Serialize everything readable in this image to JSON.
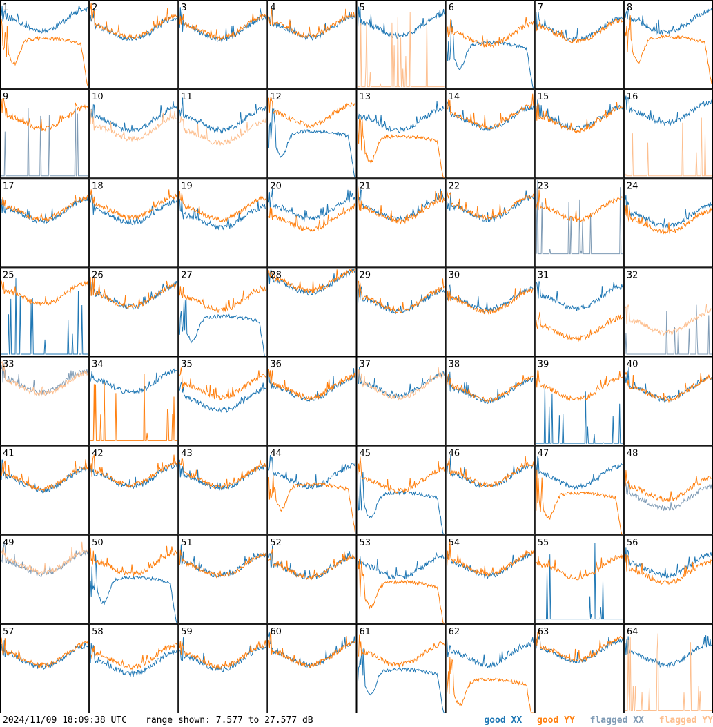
{
  "footer": {
    "timestamp": "2024/11/09 18:09:38 UTC",
    "range_label": "range shown: 7.577 to 27.577 dB"
  },
  "legend": [
    {
      "label": "good XX",
      "color": "#1f77b4"
    },
    {
      "label": "good YY",
      "color": "#ff7f0e"
    },
    {
      "label": "flagged XX",
      "color": "#7f9bb5"
    },
    {
      "label": "flagged YY",
      "color": "#fdbf8f"
    }
  ],
  "chart_data": {
    "type": "line",
    "grid": {
      "rows": 8,
      "cols": 8
    },
    "ylim": [
      7.577,
      27.577
    ],
    "y_unit": "dB",
    "colors": {
      "good_xx": "#1f77b4",
      "good_yy": "#ff7f0e",
      "flagged_xx": "#7f9bb5",
      "flagged_yy": "#fdbf8f"
    },
    "panels": [
      {
        "id": "1",
        "xx": {
          "style": "normal",
          "level": 0.72,
          "flag": false
        },
        "yy": {
          "style": "dip",
          "level": 0.5,
          "flag": false
        }
      },
      {
        "id": "2",
        "xx": {
          "style": "normal",
          "level": 0.62,
          "flag": false
        },
        "yy": {
          "style": "normal",
          "level": 0.64,
          "flag": false
        }
      },
      {
        "id": "3",
        "xx": {
          "style": "normal",
          "level": 0.62,
          "flag": false
        },
        "yy": {
          "style": "normal",
          "level": 0.64,
          "flag": false
        }
      },
      {
        "id": "4",
        "xx": {
          "style": "normal",
          "level": 0.64,
          "flag": false
        },
        "yy": {
          "style": "normal",
          "level": 0.66,
          "flag": false
        }
      },
      {
        "id": "5",
        "xx": {
          "style": "normal",
          "level": 0.66,
          "flag": false
        },
        "yy": {
          "style": "spikes",
          "level": 0.02,
          "flag": true
        }
      },
      {
        "id": "6",
        "xx": {
          "style": "dip",
          "level": 0.45,
          "flag": false
        },
        "yy": {
          "style": "normal",
          "level": 0.55,
          "flag": false
        }
      },
      {
        "id": "7",
        "xx": {
          "style": "normal",
          "level": 0.62,
          "flag": false
        },
        "yy": {
          "style": "normal",
          "level": 0.6,
          "flag": false
        }
      },
      {
        "id": "8",
        "xx": {
          "style": "normal",
          "level": 0.7,
          "flag": false
        },
        "yy": {
          "style": "dip",
          "level": 0.52,
          "flag": false
        }
      },
      {
        "id": "9",
        "xx": {
          "style": "spikes",
          "level": 0.02,
          "flag": true
        },
        "yy": {
          "style": "normal",
          "level": 0.62,
          "flag": false
        }
      },
      {
        "id": "10",
        "xx": {
          "style": "normal",
          "level": 0.6,
          "flag": false
        },
        "yy": {
          "style": "normal",
          "level": 0.5,
          "flag": true
        }
      },
      {
        "id": "11",
        "xx": {
          "style": "normal",
          "level": 0.6,
          "flag": false
        },
        "yy": {
          "style": "normal",
          "level": 0.45,
          "flag": true
        }
      },
      {
        "id": "12",
        "xx": {
          "style": "dip",
          "level": 0.46,
          "flag": false
        },
        "yy": {
          "style": "normal",
          "level": 0.66,
          "flag": false
        }
      },
      {
        "id": "13",
        "xx": {
          "style": "normal",
          "level": 0.6,
          "flag": false
        },
        "yy": {
          "style": "dip",
          "level": 0.4,
          "flag": false
        }
      },
      {
        "id": "14",
        "xx": {
          "style": "normal",
          "level": 0.62,
          "flag": false
        },
        "yy": {
          "style": "normal",
          "level": 0.64,
          "flag": false
        }
      },
      {
        "id": "15",
        "xx": {
          "style": "normal",
          "level": 0.62,
          "flag": false
        },
        "yy": {
          "style": "normal",
          "level": 0.6,
          "flag": false
        }
      },
      {
        "id": "16",
        "xx": {
          "style": "normal",
          "level": 0.68,
          "flag": false
        },
        "yy": {
          "style": "spikes",
          "level": 0.02,
          "flag": true
        }
      },
      {
        "id": "17",
        "xx": {
          "style": "normal",
          "level": 0.58,
          "flag": false
        },
        "yy": {
          "style": "normal",
          "level": 0.6,
          "flag": false
        }
      },
      {
        "id": "18",
        "xx": {
          "style": "normal",
          "level": 0.56,
          "flag": false
        },
        "yy": {
          "style": "normal",
          "level": 0.62,
          "flag": false
        }
      },
      {
        "id": "19",
        "xx": {
          "style": "normal",
          "level": 0.5,
          "flag": false
        },
        "yy": {
          "style": "normal",
          "level": 0.6,
          "flag": false
        }
      },
      {
        "id": "20",
        "xx": {
          "style": "normal",
          "level": 0.6,
          "flag": false
        },
        "yy": {
          "style": "normal",
          "level": 0.48,
          "flag": false
        }
      },
      {
        "id": "21",
        "xx": {
          "style": "normal",
          "level": 0.6,
          "flag": false
        },
        "yy": {
          "style": "normal",
          "level": 0.58,
          "flag": false
        }
      },
      {
        "id": "22",
        "xx": {
          "style": "normal",
          "level": 0.6,
          "flag": false
        },
        "yy": {
          "style": "normal",
          "level": 0.62,
          "flag": false
        }
      },
      {
        "id": "23",
        "xx": {
          "style": "spikes",
          "level": 0.15,
          "flag": true
        },
        "yy": {
          "style": "normal",
          "level": 0.6,
          "flag": false
        }
      },
      {
        "id": "24",
        "xx": {
          "style": "normal",
          "level": 0.52,
          "flag": false
        },
        "yy": {
          "style": "normal",
          "level": 0.45,
          "flag": false
        }
      },
      {
        "id": "25",
        "xx": {
          "style": "spikes",
          "level": 0.02,
          "flag": false
        },
        "yy": {
          "style": "normal",
          "level": 0.65,
          "flag": false
        }
      },
      {
        "id": "26",
        "xx": {
          "style": "normal",
          "level": 0.62,
          "flag": false
        },
        "yy": {
          "style": "normal",
          "level": 0.62,
          "flag": false
        }
      },
      {
        "id": "27",
        "xx": {
          "style": "dip",
          "level": 0.38,
          "flag": false
        },
        "yy": {
          "style": "normal",
          "level": 0.58,
          "flag": false
        }
      },
      {
        "id": "28",
        "xx": {
          "style": "normal",
          "level": 0.78,
          "flag": false
        },
        "yy": {
          "style": "normal",
          "level": 0.8,
          "flag": false
        }
      },
      {
        "id": "29",
        "xx": {
          "style": "normal",
          "level": 0.56,
          "flag": false
        },
        "yy": {
          "style": "normal",
          "level": 0.58,
          "flag": false
        }
      },
      {
        "id": "30",
        "xx": {
          "style": "normal",
          "level": 0.58,
          "flag": false
        },
        "yy": {
          "style": "normal",
          "level": 0.56,
          "flag": false
        }
      },
      {
        "id": "31",
        "xx": {
          "style": "normal",
          "level": 0.6,
          "flag": false
        },
        "yy": {
          "style": "normal",
          "level": 0.25,
          "flag": false
        }
      },
      {
        "id": "32",
        "xx": {
          "style": "spikes",
          "level": 0.02,
          "flag": true
        },
        "yy": {
          "style": "normal",
          "level": 0.32,
          "flag": true
        }
      },
      {
        "id": "33",
        "xx": {
          "style": "normal",
          "level": 0.66,
          "flag": true
        },
        "yy": {
          "style": "normal",
          "level": 0.64,
          "flag": true
        }
      },
      {
        "id": "34",
        "xx": {
          "style": "normal",
          "level": 0.66,
          "flag": false
        },
        "yy": {
          "style": "spikes",
          "level": 0.05,
          "flag": false
        }
      },
      {
        "id": "35",
        "xx": {
          "style": "normal",
          "level": 0.45,
          "flag": false
        },
        "yy": {
          "style": "normal",
          "level": 0.6,
          "flag": false
        }
      },
      {
        "id": "36",
        "xx": {
          "style": "normal",
          "level": 0.58,
          "flag": false
        },
        "yy": {
          "style": "normal",
          "level": 0.6,
          "flag": false
        }
      },
      {
        "id": "37",
        "xx": {
          "style": "normal",
          "level": 0.62,
          "flag": false
        },
        "yy": {
          "style": "normal",
          "level": 0.6,
          "flag": true
        }
      },
      {
        "id": "38",
        "xx": {
          "style": "normal",
          "level": 0.56,
          "flag": false
        },
        "yy": {
          "style": "normal",
          "level": 0.58,
          "flag": false
        }
      },
      {
        "id": "39",
        "xx": {
          "style": "spikes",
          "level": 0.02,
          "flag": false
        },
        "yy": {
          "style": "normal",
          "level": 0.58,
          "flag": false
        }
      },
      {
        "id": "40",
        "xx": {
          "style": "normal",
          "level": 0.58,
          "flag": false
        },
        "yy": {
          "style": "normal",
          "level": 0.58,
          "flag": false
        }
      },
      {
        "id": "41",
        "xx": {
          "style": "normal",
          "level": 0.56,
          "flag": false
        },
        "yy": {
          "style": "normal",
          "level": 0.58,
          "flag": false
        }
      },
      {
        "id": "42",
        "xx": {
          "style": "normal",
          "level": 0.6,
          "flag": false
        },
        "yy": {
          "style": "normal",
          "level": 0.62,
          "flag": false
        }
      },
      {
        "id": "43",
        "xx": {
          "style": "normal",
          "level": 0.58,
          "flag": false
        },
        "yy": {
          "style": "normal",
          "level": 0.6,
          "flag": false
        }
      },
      {
        "id": "44",
        "xx": {
          "style": "normal",
          "level": 0.6,
          "flag": false
        },
        "yy": {
          "style": "dip",
          "level": 0.5,
          "flag": false
        }
      },
      {
        "id": "45",
        "xx": {
          "style": "dip",
          "level": 0.4,
          "flag": false
        },
        "yy": {
          "style": "normal",
          "level": 0.55,
          "flag": false
        }
      },
      {
        "id": "46",
        "xx": {
          "style": "normal",
          "level": 0.6,
          "flag": false
        },
        "yy": {
          "style": "normal",
          "level": 0.62,
          "flag": false
        }
      },
      {
        "id": "47",
        "xx": {
          "style": "normal",
          "level": 0.6,
          "flag": false
        },
        "yy": {
          "style": "dip",
          "level": 0.4,
          "flag": false
        }
      },
      {
        "id": "48",
        "xx": {
          "style": "normal",
          "level": 0.35,
          "flag": true
        },
        "yy": {
          "style": "normal",
          "level": 0.45,
          "flag": false
        }
      },
      {
        "id": "49",
        "xx": {
          "style": "normal",
          "level": 0.62,
          "flag": true
        },
        "yy": {
          "style": "normal",
          "level": 0.64,
          "flag": true
        }
      },
      {
        "id": "50",
        "xx": {
          "style": "dip",
          "level": 0.45,
          "flag": false
        },
        "yy": {
          "style": "normal",
          "level": 0.62,
          "flag": false
        }
      },
      {
        "id": "51",
        "xx": {
          "style": "normal",
          "level": 0.6,
          "flag": false
        },
        "yy": {
          "style": "normal",
          "level": 0.6,
          "flag": false
        }
      },
      {
        "id": "52",
        "xx": {
          "style": "normal",
          "level": 0.58,
          "flag": false
        },
        "yy": {
          "style": "normal",
          "level": 0.58,
          "flag": false
        }
      },
      {
        "id": "53",
        "xx": {
          "style": "normal",
          "level": 0.58,
          "flag": false
        },
        "yy": {
          "style": "dip",
          "level": 0.4,
          "flag": false
        }
      },
      {
        "id": "54",
        "xx": {
          "style": "normal",
          "level": 0.6,
          "flag": false
        },
        "yy": {
          "style": "normal",
          "level": 0.62,
          "flag": false
        }
      },
      {
        "id": "55",
        "xx": {
          "style": "spikes",
          "level": 0.05,
          "flag": false
        },
        "yy": {
          "style": "normal",
          "level": 0.58,
          "flag": false
        }
      },
      {
        "id": "56",
        "xx": {
          "style": "normal",
          "level": 0.6,
          "flag": false
        },
        "yy": {
          "style": "normal",
          "level": 0.52,
          "flag": false
        }
      },
      {
        "id": "57",
        "xx": {
          "style": "normal",
          "level": 0.58,
          "flag": false
        },
        "yy": {
          "style": "normal",
          "level": 0.6,
          "flag": false
        }
      },
      {
        "id": "58",
        "xx": {
          "style": "normal",
          "level": 0.5,
          "flag": false
        },
        "yy": {
          "style": "normal",
          "level": 0.58,
          "flag": false
        }
      },
      {
        "id": "59",
        "xx": {
          "style": "normal",
          "level": 0.55,
          "flag": false
        },
        "yy": {
          "style": "normal",
          "level": 0.58,
          "flag": false
        }
      },
      {
        "id": "60",
        "xx": {
          "style": "normal",
          "level": 0.6,
          "flag": false
        },
        "yy": {
          "style": "normal",
          "level": 0.6,
          "flag": false
        }
      },
      {
        "id": "61",
        "xx": {
          "style": "dip",
          "level": 0.42,
          "flag": false
        },
        "yy": {
          "style": "normal",
          "level": 0.6,
          "flag": false
        }
      },
      {
        "id": "62",
        "xx": {
          "style": "normal",
          "level": 0.6,
          "flag": false
        },
        "yy": {
          "style": "dip",
          "level": 0.3,
          "flag": false
        }
      },
      {
        "id": "63",
        "xx": {
          "style": "normal",
          "level": 0.64,
          "flag": false
        },
        "yy": {
          "style": "normal",
          "level": 0.66,
          "flag": false
        }
      },
      {
        "id": "64",
        "xx": {
          "style": "normal",
          "level": 0.6,
          "flag": false
        },
        "yy": {
          "style": "spikes",
          "level": 0.02,
          "flag": true
        }
      }
    ]
  }
}
